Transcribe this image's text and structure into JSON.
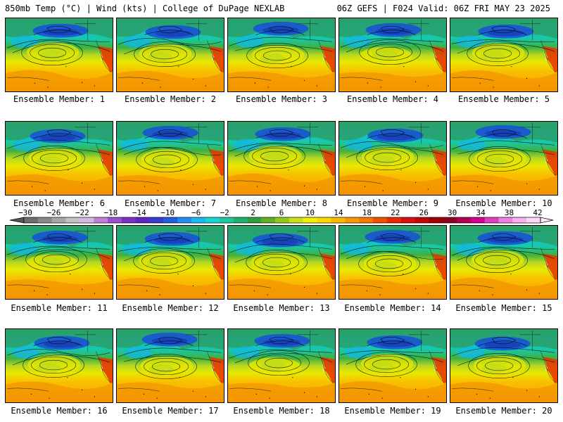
{
  "header": {
    "left_title": "850mb Temp (°C) | Wind (kts) | College of DuPage NEXLAB",
    "right_title": "06Z GEFS | F024 Valid: 06Z FRI MAY 23 2025"
  },
  "members": [
    "Ensemble Member: 1",
    "Ensemble Member: 2",
    "Ensemble Member: 3",
    "Ensemble Member: 4",
    "Ensemble Member: 5",
    "Ensemble Member: 6",
    "Ensemble Member: 7",
    "Ensemble Member: 8",
    "Ensemble Member: 9",
    "Ensemble Member: 10",
    "Ensemble Member: 11",
    "Ensemble Member: 12",
    "Ensemble Member: 13",
    "Ensemble Member: 14",
    "Ensemble Member: 15",
    "Ensemble Member: 16",
    "Ensemble Member: 17",
    "Ensemble Member: 18",
    "Ensemble Member: 19",
    "Ensemble Member: 20"
  ],
  "colorbar": {
    "tick_labels": [
      "−30",
      "−26",
      "−22",
      "−18",
      "−14",
      "−10",
      "−6",
      "−2",
      "2",
      "6",
      "10",
      "14",
      "18",
      "22",
      "26",
      "30",
      "34",
      "38",
      "42"
    ],
    "colors": [
      "#6e6e6e",
      "#8a8a8a",
      "#a7a7a7",
      "#c2c2c2",
      "#d8b8e0",
      "#c080d8",
      "#9b4fd0",
      "#7a2fc8",
      "#5a28c0",
      "#3a3ad0",
      "#1f5fe0",
      "#1f8ef0",
      "#19b8f0",
      "#18d6d8",
      "#20c8a0",
      "#20b070",
      "#2fa040",
      "#60b020",
      "#90c818",
      "#c8e018",
      "#f0f000",
      "#f8d800",
      "#f8b800",
      "#f89800",
      "#f87800",
      "#f05000",
      "#e82800",
      "#d81010",
      "#c00808",
      "#a00000",
      "#900020",
      "#b00050",
      "#d00090",
      "#e040c0",
      "#f080e0",
      "#f8b0f0",
      "#fcd8f8"
    ]
  },
  "map_palette": {
    "land": "#2aa064",
    "cold": "#1850d8",
    "mid_blue": "#10b8e8",
    "teal": "#18c8a8",
    "green": "#40b040",
    "yellow_green": "#b8d820",
    "yellow": "#e8e800",
    "light_orange": "#f8c000",
    "orange": "#f8a000",
    "deep_orange": "#f08800",
    "red": "#e83000"
  }
}
